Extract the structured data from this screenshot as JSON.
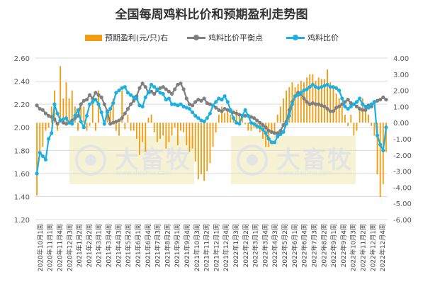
{
  "chart_data": {
    "type": "bar+line",
    "title": "全国每周鸡料比价和预期盈利走势图",
    "legend": [
      "预期盈利(元/只)右",
      "鸡料比价平衡点",
      "鸡料比价"
    ],
    "legend_position": "top",
    "colors": {
      "bar": "#f39c12",
      "balance": "#7f7f7f",
      "ratio": "#1bb0e0"
    },
    "watermark": {
      "text": "大畜牧",
      "sub": "www.dxumu.com"
    },
    "left_axis": {
      "min": 1.2,
      "max": 2.6,
      "step": 0.2,
      "ticks": [
        "1.20",
        "1.40",
        "1.60",
        "1.80",
        "2.00",
        "2.20",
        "2.40",
        "2.60"
      ]
    },
    "right_axis": {
      "min": -6,
      "max": 4,
      "step": 1,
      "ticks": [
        "-6.00",
        "-5.00",
        "-4.00",
        "-3.00",
        "-2.00",
        "-1.00",
        "0.00",
        "1.00",
        "2.00",
        "3.00",
        "4.00"
      ]
    },
    "grid": true,
    "x_tick_labels": [
      "2020年10月1周",
      "2020年11月1周",
      "2020年11月4周",
      "2020年12月3周",
      "2021年1月2周",
      "2021年2月2周",
      "2021年3月1周",
      "2021年3月4周",
      "2021年4月3周",
      "2021年5月2周",
      "2021年6月1周",
      "2021年6月4周",
      "2021年7月3周",
      "2021年8月2周",
      "2021年9月1周",
      "2021年9月4周",
      "2021年10月3周",
      "2021年11月2周",
      "2021年12月1周",
      "2021年12月4周",
      "2022年1月3周",
      "2022年2月2周",
      "2022年3月1周",
      "2022年3月4周",
      "2022年4月3周",
      "2022年5月2周",
      "2022年6月1周",
      "2022年6月4周",
      "2022年7月3周",
      "2022年8月2周",
      "2022年9月1周",
      "2022年9月4周",
      "2022年10月3周",
      "2022年11月2周",
      "2022年12月1周",
      "2022年12月4周"
    ],
    "profit": [
      -4.5,
      -2,
      -1.5,
      -0.5,
      -0.3,
      1,
      2,
      -0.5,
      3.5,
      1.5,
      2.5,
      1.5,
      2,
      1,
      -0.5,
      1,
      1,
      -0.5,
      -0.2,
      1.5,
      -0.5,
      2,
      0,
      -0.2,
      0.5,
      0.8,
      1.5,
      -0.5,
      -0.8,
      2,
      -0.4,
      0.5,
      -0.5,
      -0.5,
      -1,
      -2,
      -1.2,
      -1.8,
      0.3,
      0.5,
      -0.6,
      -1.2,
      -1,
      -0.8,
      -1.6,
      -1.2,
      -0.8,
      -0.3,
      -1.4,
      -0.5,
      -0.6,
      -1.4,
      -1.8,
      -1.6,
      -2.4,
      -3.5,
      -3.2,
      -3.6,
      -3,
      -2.5,
      -1.5,
      -0.6,
      0.5,
      1,
      0.6,
      0.8,
      0.5,
      0.4,
      0.8,
      0.6,
      0.4,
      -0.1,
      -0.5,
      -0.5,
      -0.3,
      -0.4,
      -0.6,
      -1,
      -1.5,
      -1.5,
      -0.7,
      -0.6,
      0.5,
      1,
      1.5,
      2,
      2.2,
      2.5,
      2.2,
      2.4,
      2.6,
      2.5,
      2.8,
      3,
      3,
      2.6,
      2.8,
      2.7,
      2.7,
      3.3,
      2.5,
      2.2,
      1.8,
      1.5,
      1,
      0.5,
      -0.2,
      0.5,
      -0.8,
      -0.5,
      1,
      1.5,
      1,
      0.5,
      -0.2,
      -0.8,
      -3.2,
      -4.6,
      -3.8,
      -1.8
    ],
    "balance": [
      2.19,
      2.16,
      2.15,
      2.12,
      2.1,
      2.09,
      2.07,
      2.03,
      2.06,
      2.04,
      2.03,
      2.04,
      2.06,
      2.08,
      2.1,
      2.2,
      2.23,
      2.24,
      2.28,
      2.25,
      2.3,
      2.28,
      2.26,
      2.2,
      2.14,
      2.03,
      2.04,
      2.05,
      2.06,
      2.08,
      2.12,
      2.16,
      2.2,
      2.23,
      2.27,
      2.34,
      2.38,
      2.35,
      2.3,
      2.31,
      2.29,
      2.32,
      2.34,
      2.35,
      2.33,
      2.31,
      2.29,
      2.33,
      2.37,
      2.38,
      2.33,
      2.25,
      2.2,
      2.19,
      2.22,
      2.24,
      2.23,
      2.25,
      2.21,
      2.2,
      2.19,
      2.17,
      2.15,
      2.14,
      2.16,
      2.15,
      2.14,
      2.13,
      2.12,
      2.11,
      2.1,
      2.1,
      2.1,
      2.09,
      2.08,
      2.06,
      2.04,
      2.02,
      2.0,
      1.97,
      1.96,
      1.95,
      1.95,
      1.97,
      2.02,
      2.05,
      2.15,
      2.22,
      2.27,
      2.3,
      2.29,
      2.25,
      2.22,
      2.2,
      2.21,
      2.2,
      2.2,
      2.19,
      2.18,
      2.16,
      2.14,
      2.14,
      2.17,
      2.18,
      2.2,
      2.22,
      2.24,
      2.21,
      2.2,
      2.18,
      2.16,
      2.15,
      2.15,
      2.19,
      2.18,
      2.22,
      2.23,
      2.24,
      2.26,
      2.24
    ],
    "ratio": [
      1.6,
      1.78,
      1.75,
      1.72,
      1.9,
      1.95,
      2.2,
      2.12,
      2.06,
      2.07,
      2.08,
      2.04,
      2.03,
      2.1,
      2.15,
      2.05,
      2.0,
      2.1,
      2.2,
      2.22,
      2.24,
      2.2,
      2.13,
      2.03,
      2.13,
      2.16,
      2.21,
      2.3,
      2.32,
      2.34,
      2.35,
      2.3,
      2.28,
      2.26,
      2.25,
      2.19,
      2.18,
      2.26,
      2.3,
      2.37,
      2.35,
      2.33,
      2.3,
      2.29,
      2.24,
      2.25,
      2.2,
      2.2,
      2.19,
      2.2,
      2.18,
      2.17,
      2.16,
      2.13,
      2.1,
      2.08,
      2.06,
      2.05,
      2.08,
      2.12,
      2.19,
      2.22,
      2.25,
      2.24,
      2.27,
      2.22,
      2.15,
      2.08,
      2.04,
      2.03,
      2.1,
      2.15,
      2.1,
      2.04,
      2.03,
      2.01,
      2.0,
      1.98,
      1.95,
      1.9,
      1.87,
      1.87,
      1.92,
      1.94,
      1.96,
      2.03,
      2.1,
      2.2,
      2.27,
      2.28,
      2.3,
      2.32,
      2.33,
      2.35,
      2.37,
      2.35,
      2.34,
      2.35,
      2.36,
      2.37,
      2.35,
      2.35,
      2.34,
      2.32,
      2.25,
      2.18,
      2.16,
      2.18,
      2.2,
      2.22,
      2.25,
      2.2,
      2.18,
      2.17,
      2.2,
      2.22,
      1.93,
      1.85,
      1.8,
      2.0
    ]
  }
}
